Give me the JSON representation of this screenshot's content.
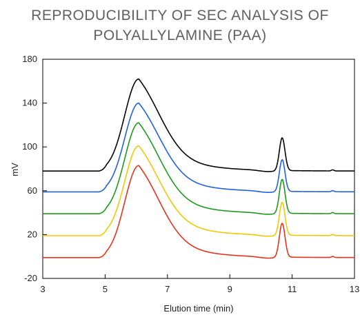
{
  "chart_data": {
    "type": "line",
    "title_lines": [
      "REPRODUCIBILITY OF SEC ANALYSIS OF",
      "POLYALLYLAMINE (PAA)"
    ],
    "xlabel": "Elution time (min)",
    "ylabel": "mV",
    "xlim": [
      3,
      13
    ],
    "ylim": [
      -20,
      180
    ],
    "xticks": [
      3,
      5,
      7,
      9,
      11,
      13
    ],
    "yticks": [
      -20,
      20,
      60,
      100,
      140,
      180
    ],
    "grid": false,
    "series": [
      {
        "color": "#000000",
        "baseline": 78,
        "peak1": 162,
        "peak2": 108
      },
      {
        "color": "#1f5fe0",
        "baseline": 59,
        "peak1": 140,
        "peak2": 88
      },
      {
        "color": "#1a9a1a",
        "baseline": 39,
        "peak1": 122,
        "peak2": 70
      },
      {
        "color": "#f0c800",
        "baseline": 19,
        "peak1": 101,
        "peak2": 49
      },
      {
        "color": "#e8301c",
        "baseline": -1,
        "peak1": 83,
        "peak2": 30
      }
    ]
  }
}
